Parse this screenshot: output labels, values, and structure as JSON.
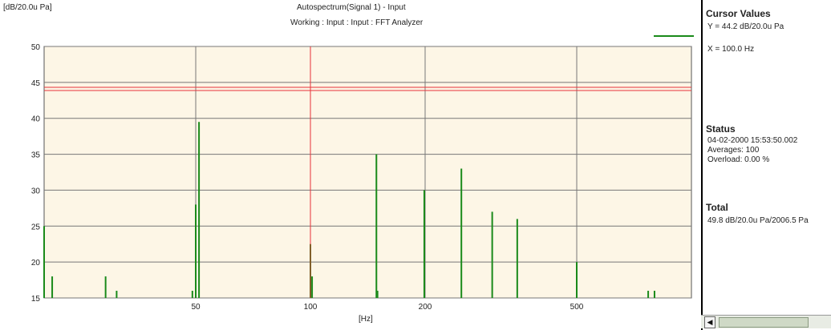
{
  "header": {
    "title": "Autospectrum(Signal 1) - Input",
    "subtitle": "Working : Input : Input : FFT Analyzer",
    "unit_label": "[dB/20.0u Pa]"
  },
  "colors": {
    "plot_bg": "#fdf6e6",
    "series": "#1a8a1a",
    "cursor_h": "#e8333a",
    "cursor_v": "#e8333a",
    "grid": "#777777"
  },
  "chart_data": {
    "type": "bar",
    "title": "Autospectrum(Signal 1) - Input",
    "subtitle": "Working : Input : Input : FFT Analyzer",
    "ylabel": "[dB/20.0u Pa]",
    "xlabel": "[Hz]",
    "ylim": [
      15,
      50
    ],
    "yticks": [
      15,
      20,
      25,
      30,
      35,
      40,
      45,
      50
    ],
    "x_scale": "log",
    "xticks": [
      50,
      100,
      200,
      500
    ],
    "xlim": [
      20,
      1000
    ],
    "grid": true,
    "cursor": {
      "y": 44.2,
      "x": 100
    },
    "series": [
      {
        "name": "",
        "x": [
          20,
          21,
          29,
          31,
          49,
          50,
          51,
          100,
          101,
          149,
          150,
          199,
          249,
          300,
          349,
          500,
          770,
          800
        ],
        "y": [
          25,
          18,
          18,
          16,
          16,
          28,
          39.5,
          22.5,
          18,
          35,
          16,
          30,
          33,
          27,
          26,
          20,
          16,
          16
        ]
      }
    ]
  },
  "sidebar": {
    "cursor_title": "Cursor Values",
    "cursor_y": "Y = 44.2 dB/20.0u Pa",
    "cursor_x": "X = 100.0 Hz",
    "status_title": "Status",
    "status_time": "04-02-2000 15:53:50.002",
    "status_averages": "Averages: 100",
    "status_overload": "Overload: 0.00 %",
    "total_title": "Total",
    "total_value": "49.8 dB/20.0u Pa/2006.5 Pa"
  }
}
